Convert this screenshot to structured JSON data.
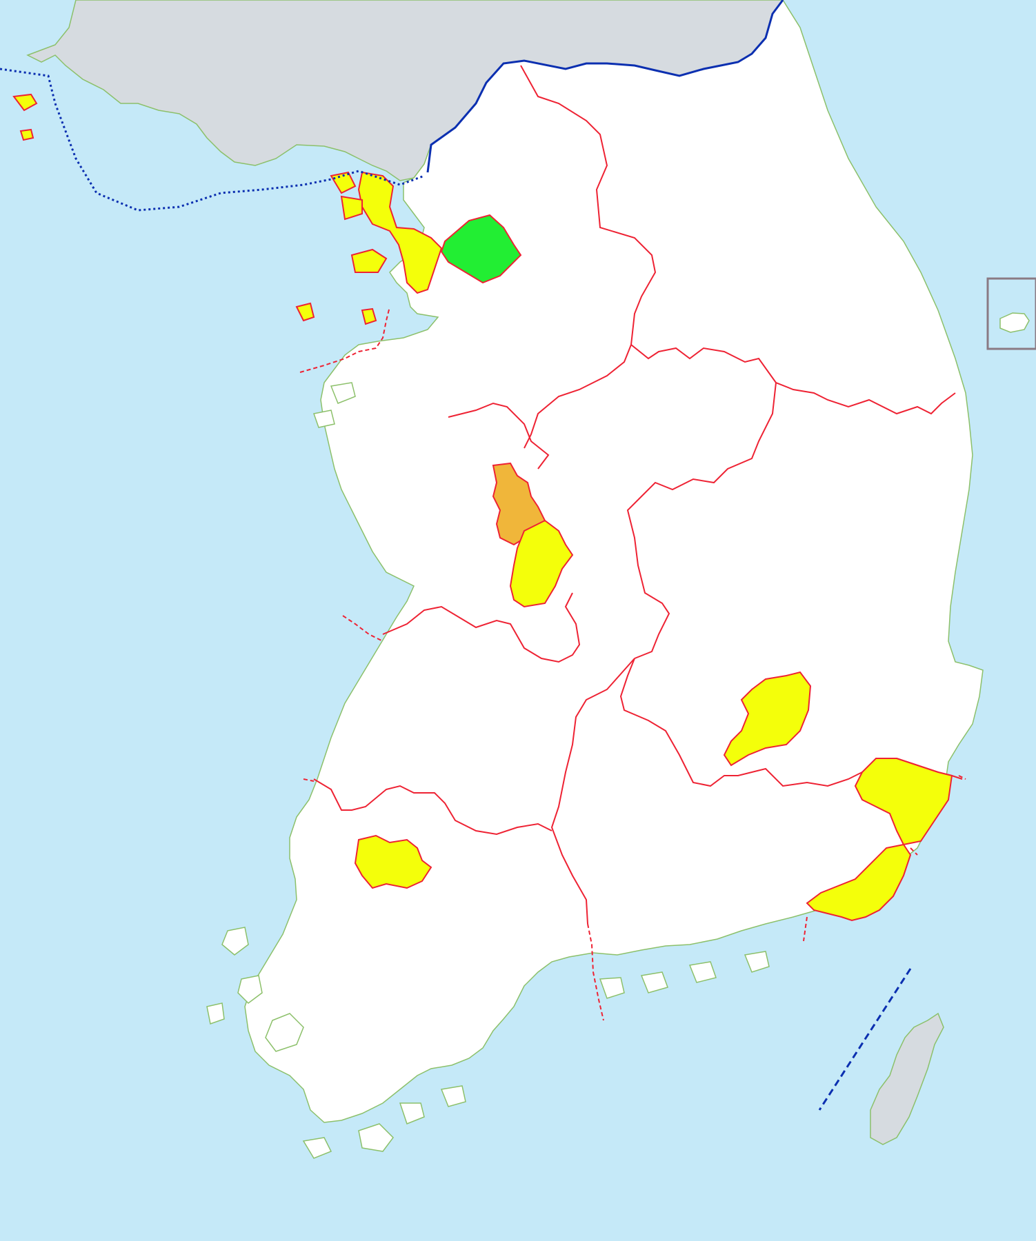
{
  "map": {
    "colors": {
      "sea": "#c5e9f8",
      "land": "#ffffff",
      "foreign_land": "#d6dbe0",
      "coastline": "#8cc06a",
      "province_border": "#ee2233",
      "maritime_border": "#0b2fb0",
      "capital_area": "#22ee33",
      "metro_city": "#f4ff0a",
      "special_city": "#f0b63a",
      "inset_frame": "#8a7a84"
    },
    "legend_groups": [
      {
        "kind": "capital_area",
        "count": 1
      },
      {
        "kind": "metropolitan_city",
        "count": 6
      },
      {
        "kind": "special_self_governing_city",
        "count": 1
      }
    ],
    "features": [
      "foreign-land-north",
      "foreign-land-tsushima",
      "mainland",
      "province-borders",
      "maritime-border-west",
      "land-border-north",
      "inset-jeju"
    ]
  }
}
